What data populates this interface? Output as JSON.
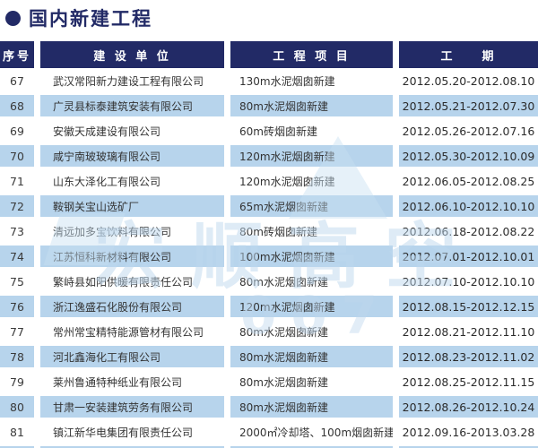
{
  "title": "国内新建工程",
  "colors": {
    "navy": "#222a66",
    "row_blue": "#b7d4ec",
    "text": "#333333",
    "watermark_blue": "#bed8ee"
  },
  "watermark": {
    "text": "宏顺高空",
    "digits": "007"
  },
  "table": {
    "headers": [
      "序号",
      "建 设 单 位",
      "工 程 项 目",
      "工    期"
    ],
    "rows": [
      {
        "no": "67",
        "company": "武汉常阳新力建设工程有限公司",
        "project": "130m水泥烟囱新建",
        "period": "2012.05.20-2012.08.10"
      },
      {
        "no": "68",
        "company": "广灵县标泰建筑安装有限公司",
        "project": "80m水泥烟囱新建",
        "period": "2012.05.21-2012.07.30"
      },
      {
        "no": "69",
        "company": "安徽天成建设有限公司",
        "project": "60m砖烟囱新建",
        "period": "2012.05.26-2012.07.16"
      },
      {
        "no": "70",
        "company": "咸宁南玻玻璃有限公司",
        "project": "120m水泥烟囱新建",
        "period": "2012.05.30-2012.10.09"
      },
      {
        "no": "71",
        "company": "山东大泽化工有限公司",
        "project": "120m水泥烟囱新建",
        "period": "2012.06.05-2012.08.25"
      },
      {
        "no": "72",
        "company": "鞍钢关宝山选矿厂",
        "project": "65m水泥烟囱新建",
        "period": "2012.06.10-2012.10.10"
      },
      {
        "no": "73",
        "company": "清远加多宝饮料有限公司",
        "project": "80m砖烟囱新建",
        "period": "2012.06.18-2012.08.22"
      },
      {
        "no": "74",
        "company": "江苏恒科新材料有限公司",
        "project": "100m水泥烟囱新建",
        "period": "2012.07.01-2012.10.01"
      },
      {
        "no": "75",
        "company": "繁峙县如阳供暖有限责任公司",
        "project": "80m水泥烟囱新建",
        "period": "2012.07.10-2012.10.10"
      },
      {
        "no": "76",
        "company": "浙江逸盛石化股份有限公司",
        "project": "120m水泥烟囱新建",
        "period": "2012.08.15-2012.12.15"
      },
      {
        "no": "77",
        "company": "常州常宝精特能源管材有限公司",
        "project": "80m水泥烟囱新建",
        "period": "2012.08.21-2012.11.10"
      },
      {
        "no": "78",
        "company": "河北鑫海化工有限公司",
        "project": "80m水泥烟囱新建",
        "period": "2012.08.23-2012.11.02"
      },
      {
        "no": "79",
        "company": "莱州鲁通特种纸业有限公司",
        "project": "80m水泥烟囱新建",
        "period": "2012.08.25-2012.11.15"
      },
      {
        "no": "80",
        "company": "甘肃一安装建筑劳务有限公司",
        "project": "80m水泥烟囱新建",
        "period": "2012.08.26-2012.10.24"
      },
      {
        "no": "81",
        "company": "镇江新华电集团有限责任公司",
        "project": "2000㎡冷却塔、100m烟囱新建",
        "period": "2012.09.16-2013.03.28"
      }
    ]
  }
}
